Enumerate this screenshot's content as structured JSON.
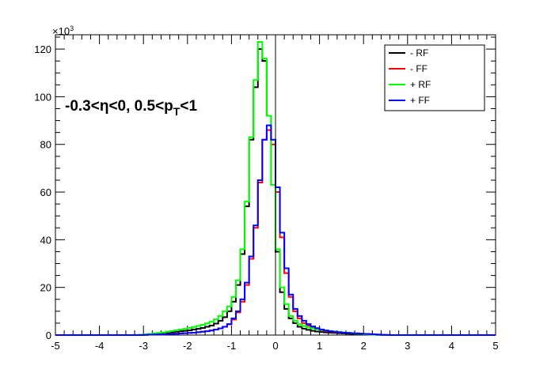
{
  "chart_data": {
    "type": "line",
    "step": true,
    "x": [
      -4.95,
      -4.85,
      -4.75,
      -4.65,
      -4.55,
      -4.45,
      -4.35,
      -4.25,
      -4.15,
      -4.05,
      -3.95,
      -3.85,
      -3.75,
      -3.65,
      -3.55,
      -3.45,
      -3.35,
      -3.25,
      -3.15,
      -3.05,
      -2.95,
      -2.85,
      -2.75,
      -2.65,
      -2.55,
      -2.45,
      -2.35,
      -2.25,
      -2.15,
      -2.05,
      -1.95,
      -1.85,
      -1.75,
      -1.65,
      -1.55,
      -1.45,
      -1.35,
      -1.25,
      -1.15,
      -1.05,
      -0.95,
      -0.85,
      -0.75,
      -0.65,
      -0.55,
      -0.45,
      -0.35,
      -0.25,
      -0.15,
      -0.05,
      0.05,
      0.15,
      0.25,
      0.35,
      0.45,
      0.55,
      0.65,
      0.75,
      0.85,
      0.95,
      1.05,
      1.15,
      1.25,
      1.35,
      1.45,
      1.55,
      1.65,
      1.75,
      1.85,
      1.95,
      2.05,
      2.15,
      2.25,
      2.35,
      2.45,
      2.55,
      2.65,
      2.75,
      2.85,
      2.95,
      3.05,
      3.15,
      3.25,
      3.35,
      3.45,
      3.55,
      3.65,
      3.75,
      3.85,
      3.95,
      4.05,
      4.15,
      4.25,
      4.35,
      4.45,
      4.55,
      4.65,
      4.75,
      4.85,
      4.95
    ],
    "series": [
      {
        "name": "- RF",
        "color": "#000000",
        "values": [
          0,
          0,
          0,
          0,
          0,
          0,
          0,
          0,
          0,
          0,
          0,
          0,
          0,
          0,
          0,
          0,
          0,
          0,
          0,
          0.1,
          0.2,
          0.3,
          0.4,
          0.6,
          0.8,
          1.0,
          1.2,
          1.4,
          1.6,
          1.8,
          2.0,
          2.3,
          2.6,
          3.0,
          3.5,
          4.0,
          4.8,
          6.0,
          7.5,
          10,
          14,
          21,
          34,
          54,
          82,
          104,
          120,
          115,
          92,
          63,
          35,
          18,
          11,
          7,
          5,
          3.5,
          2.7,
          2.2,
          1.8,
          1.5,
          1.3,
          1.1,
          1.0,
          0.9,
          0.8,
          0.7,
          0.6,
          0.5,
          0.4,
          0.3,
          0.25,
          0.2,
          0.15,
          0.1,
          0.05,
          0.03,
          0,
          0,
          0,
          0,
          0,
          0,
          0,
          0,
          0,
          0,
          0,
          0,
          0,
          0,
          0,
          0,
          0,
          0,
          0,
          0,
          0,
          0,
          0,
          0
        ]
      },
      {
        "name": "- FF",
        "color": "#ff0000",
        "values": [
          0,
          0,
          0,
          0,
          0,
          0,
          0,
          0,
          0,
          0,
          0,
          0,
          0,
          0,
          0,
          0,
          0,
          0,
          0,
          0,
          0.1,
          0.15,
          0.2,
          0.25,
          0.3,
          0.4,
          0.5,
          0.6,
          0.7,
          0.8,
          0.9,
          1.0,
          1.2,
          1.4,
          1.6,
          1.9,
          2.3,
          2.8,
          3.5,
          4.5,
          6.5,
          9.5,
          14,
          21,
          32,
          45,
          64,
          82,
          86,
          80,
          60,
          41,
          26,
          16,
          10,
          7,
          5,
          4,
          3,
          2.5,
          2.0,
          1.7,
          1.5,
          1.3,
          1.1,
          1.0,
          0.9,
          0.8,
          0.7,
          0.6,
          0.5,
          0.4,
          0.3,
          0.2,
          0.1,
          0.05,
          0,
          0,
          0,
          0,
          0,
          0,
          0,
          0,
          0,
          0,
          0,
          0,
          0,
          0,
          0,
          0,
          0,
          0,
          0,
          0,
          0,
          0,
          0,
          0
        ]
      },
      {
        "name": "+ RF",
        "color": "#00ff00",
        "values": [
          0,
          0,
          0,
          0,
          0,
          0,
          0,
          0,
          0,
          0,
          0,
          0,
          0,
          0,
          0,
          0,
          0,
          0,
          0,
          0.15,
          0.3,
          0.5,
          0.7,
          0.9,
          1.1,
          1.4,
          1.7,
          2.0,
          2.3,
          2.6,
          3.0,
          3.4,
          3.8,
          4.3,
          4.9,
          5.6,
          6.6,
          8,
          10,
          12,
          16,
          23,
          36,
          56,
          83,
          107,
          123,
          116,
          92,
          63,
          36,
          20,
          13,
          8,
          6,
          4.5,
          3.8,
          3.2,
          2.8,
          2.4,
          2.1,
          1.9,
          1.7,
          1.5,
          1.3,
          1.1,
          1.0,
          0.8,
          0.6,
          0.5,
          0.35,
          0.25,
          0.15,
          0.1,
          0.05,
          0,
          0,
          0,
          0,
          0,
          0,
          0,
          0,
          0,
          0,
          0,
          0,
          0,
          0,
          0,
          0,
          0,
          0,
          0,
          0,
          0,
          0,
          0,
          0,
          0
        ]
      },
      {
        "name": "+ FF",
        "color": "#0000ff",
        "values": [
          0,
          0,
          0,
          0,
          0,
          0,
          0,
          0,
          0,
          0,
          0,
          0,
          0,
          0,
          0,
          0,
          0,
          0,
          0,
          0,
          0.1,
          0.15,
          0.2,
          0.25,
          0.3,
          0.4,
          0.5,
          0.6,
          0.7,
          0.8,
          0.9,
          1.0,
          1.2,
          1.4,
          1.6,
          1.9,
          2.3,
          2.8,
          3.5,
          4.6,
          7,
          10,
          15,
          22,
          33,
          46,
          65,
          82,
          88,
          82,
          62,
          43,
          28,
          17,
          11,
          8,
          6,
          4.6,
          3.6,
          2.9,
          2.3,
          1.9,
          1.6,
          1.4,
          1.2,
          1.0,
          0.9,
          0.8,
          0.7,
          0.6,
          0.5,
          0.4,
          0.3,
          0.2,
          0.1,
          0.05,
          0,
          0,
          0,
          0,
          0,
          0,
          0,
          0,
          0,
          0,
          0,
          0,
          0,
          0,
          0,
          0,
          0,
          0,
          0,
          0,
          0,
          0,
          0,
          0
        ]
      }
    ],
    "xlim": [
      -5,
      5
    ],
    "ylim": [
      0,
      126
    ],
    "xticks": [
      "-5",
      "-4",
      "-3",
      "-2",
      "-1",
      "0",
      "1",
      "2",
      "3",
      "4",
      "5"
    ],
    "yticks": [
      "0",
      "20",
      "40",
      "60",
      "80",
      "100",
      "120"
    ],
    "y_multiplier": "×10",
    "y_multiplier_exp": "3",
    "vline_x": 0,
    "legend": {
      "placement": "top-right"
    },
    "annotation": {
      "part1": "-0.3<η<0, 0.5<p",
      "sub": "T",
      "part2": "<1"
    },
    "title": "",
    "xlabel": "",
    "ylabel": ""
  }
}
